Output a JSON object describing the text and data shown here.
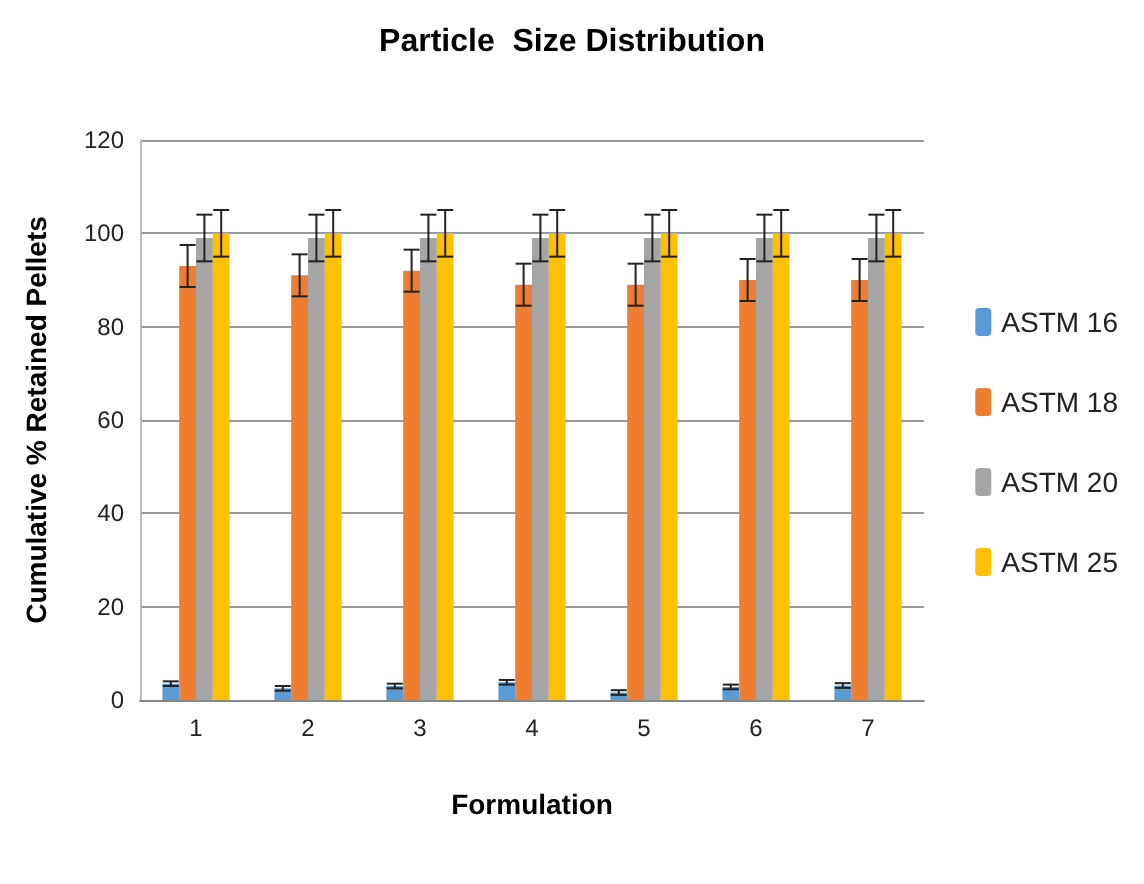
{
  "chart_data": {
    "type": "bar",
    "title": "Particle  Size Distribution",
    "xlabel": "Formulation",
    "ylabel": "Cumulative % Retained Pellets",
    "categories": [
      "1",
      "2",
      "3",
      "4",
      "5",
      "6",
      "7"
    ],
    "series": [
      {
        "name": "ASTM 16",
        "color": "#5b9bd5",
        "values": [
          3.5,
          2.5,
          3,
          3.8,
          1.6,
          2.8,
          3.1
        ],
        "errors": [
          0.5,
          0.5,
          0.5,
          0.5,
          0.5,
          0.5,
          0.5
        ]
      },
      {
        "name": "ASTM 18",
        "color": "#ed7d31",
        "values": [
          93,
          91,
          92,
          89,
          89,
          90,
          90
        ],
        "errors": [
          4.5,
          4.5,
          4.5,
          4.5,
          4.5,
          4.5,
          4.5
        ]
      },
      {
        "name": "ASTM 20",
        "color": "#a5a5a5",
        "values": [
          99,
          99,
          99,
          99,
          99,
          99,
          99
        ],
        "errors": [
          5,
          5,
          5,
          5,
          5,
          5,
          5
        ]
      },
      {
        "name": "ASTM 25",
        "color": "#ffc000",
        "values": [
          100,
          100,
          100,
          100,
          100,
          100,
          100
        ],
        "errors": [
          5,
          5,
          5,
          5,
          5,
          5,
          5
        ]
      }
    ],
    "ylim": [
      0,
      120
    ],
    "yticks": [
      0,
      20,
      40,
      60,
      80,
      100,
      120
    ],
    "grid": "y",
    "legend": "right"
  }
}
